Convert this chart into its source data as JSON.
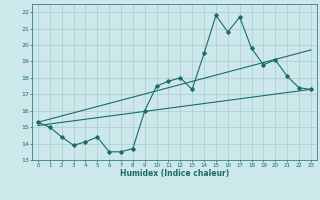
{
  "title": "",
  "xlabel": "Humidex (Indice chaleur)",
  "ylabel": "",
  "bg_color": "#cce8ea",
  "grid_color": "#aacccc",
  "line_color": "#1a6b6b",
  "xlim": [
    -0.5,
    23.5
  ],
  "ylim": [
    13,
    22.5
  ],
  "xticks": [
    0,
    1,
    2,
    3,
    4,
    5,
    6,
    7,
    8,
    9,
    10,
    11,
    12,
    13,
    14,
    15,
    16,
    17,
    18,
    19,
    20,
    21,
    22,
    23
  ],
  "yticks": [
    13,
    14,
    15,
    16,
    17,
    18,
    19,
    20,
    21,
    22
  ],
  "main_line_x": [
    0,
    1,
    2,
    3,
    4,
    5,
    6,
    7,
    8,
    9,
    10,
    11,
    12,
    13,
    14,
    15,
    16,
    17,
    18,
    19,
    20,
    21,
    22,
    23
  ],
  "main_line_y": [
    15.3,
    15.0,
    14.4,
    13.9,
    14.1,
    14.4,
    13.5,
    13.5,
    13.7,
    16.0,
    17.5,
    17.8,
    18.0,
    17.3,
    19.5,
    21.8,
    20.8,
    21.7,
    19.8,
    18.8,
    19.1,
    18.1,
    17.4,
    17.3
  ],
  "trend1_x": [
    0,
    23
  ],
  "trend1_y": [
    15.1,
    17.3
  ],
  "trend2_x": [
    0,
    23
  ],
  "trend2_y": [
    15.3,
    19.7
  ],
  "figsize": [
    3.2,
    2.0
  ],
  "dpi": 100
}
